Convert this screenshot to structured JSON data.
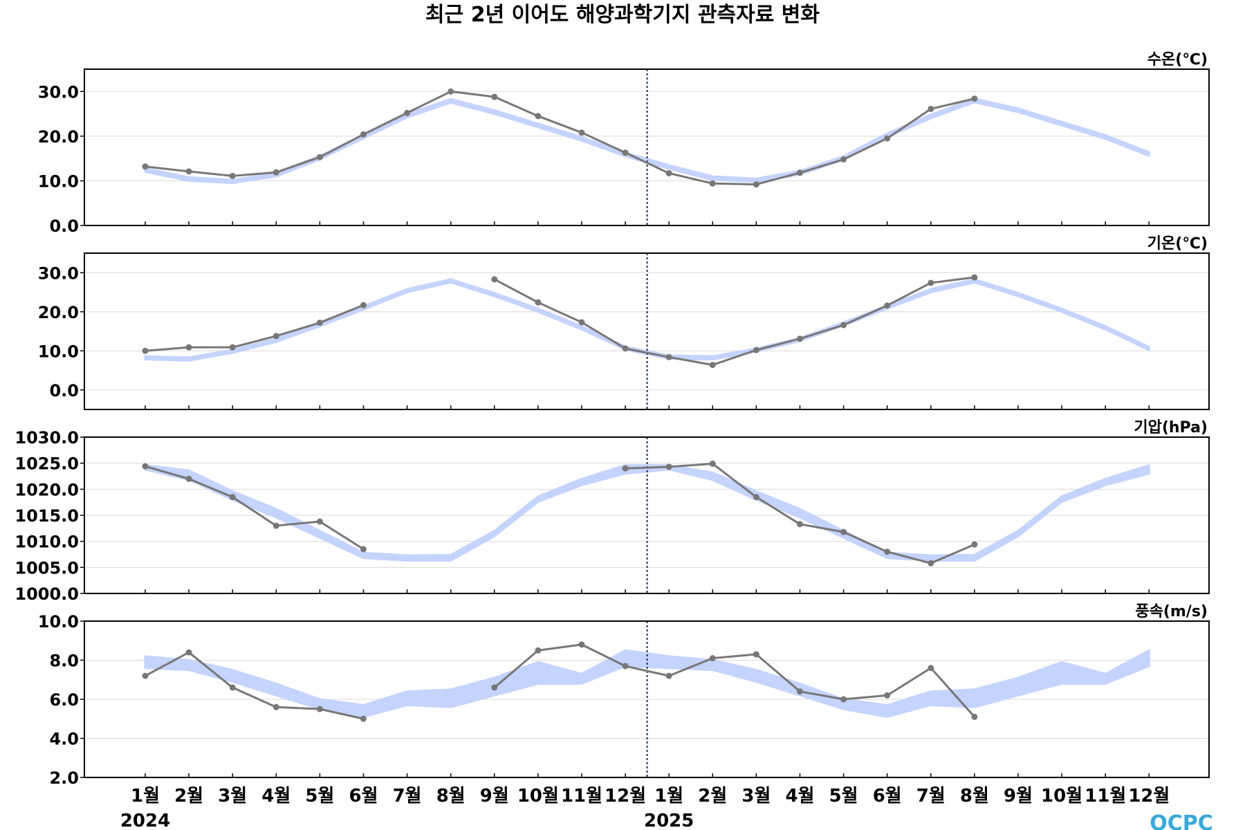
{
  "chart_data": {
    "type": "line",
    "title": "최근 2년 이어도 해양과학기지 관측자료 변화",
    "logo": "OCPC",
    "x_labels": [
      "1월",
      "2월",
      "3월",
      "4월",
      "5월",
      "6월",
      "7월",
      "8월",
      "9월",
      "10월",
      "11월",
      "12월",
      "1월",
      "2월",
      "3월",
      "4월",
      "5월",
      "6월",
      "7월",
      "8월",
      "9월",
      "10월",
      "11월",
      "12월"
    ],
    "year_labels": [
      "2024",
      "2025"
    ],
    "divider_after_index": 11,
    "colors": {
      "observed": "#777777",
      "normal_band": "#c5d3ff",
      "divider": "#1f2d5c",
      "grid": "#d9d9d9"
    },
    "panels": [
      {
        "unit_label": "수온(℃)",
        "ylim": [
          0,
          35
        ],
        "yticks": [
          0,
          10,
          20,
          30
        ],
        "yticklabels": [
          "0.0",
          "10.0",
          "20.0",
          "30.0"
        ],
        "normal_band": {
          "lower": [
            12.0,
            10.0,
            9.5,
            11.0,
            14.8,
            19.5,
            24.2,
            27.5,
            25.0,
            22.0,
            19.0,
            15.5,
            12.7,
            10.2,
            9.8,
            11.4,
            14.7,
            19.8,
            24.0,
            27.6,
            25.4,
            22.4,
            19.4,
            15.6
          ],
          "upper": [
            12.8,
            10.8,
            10.2,
            11.8,
            15.6,
            20.3,
            25.0,
            28.3,
            25.8,
            22.8,
            19.8,
            16.3,
            13.5,
            11.0,
            10.5,
            12.2,
            15.5,
            20.6,
            24.8,
            28.4,
            26.2,
            23.2,
            20.2,
            16.4
          ]
        },
        "series": [
          {
            "values": [
              13.2,
              12.1,
              11.1,
              11.9,
              15.3,
              20.4,
              25.2,
              30.0,
              28.8,
              24.5,
              20.8,
              16.3,
              11.7,
              9.4,
              9.2,
              11.8,
              14.8,
              19.5,
              26.1,
              28.4,
              null,
              null,
              null,
              null
            ]
          }
        ]
      },
      {
        "unit_label": "기온(℃)",
        "ylim": [
          -5,
          35
        ],
        "yticks": [
          0,
          10,
          20,
          30
        ],
        "yticklabels": [
          "0.0",
          "10.0",
          "20.0",
          "30.0"
        ],
        "normal_band": {
          "lower": [
            7.8,
            7.5,
            9.5,
            12.3,
            16.3,
            20.6,
            25.0,
            27.5,
            24.0,
            20.0,
            15.5,
            10.3,
            8.0,
            7.8,
            9.8,
            12.5,
            16.5,
            20.8,
            25.0,
            27.5,
            24.0,
            20.0,
            15.5,
            10.2
          ],
          "upper": [
            8.6,
            8.3,
            10.3,
            13.1,
            17.1,
            21.4,
            25.8,
            28.3,
            24.8,
            20.8,
            16.3,
            11.1,
            8.8,
            8.6,
            10.6,
            13.3,
            17.3,
            21.6,
            25.8,
            28.3,
            24.8,
            20.8,
            16.3,
            11.0
          ]
        },
        "series": [
          {
            "values": [
              10.0,
              10.9,
              10.9,
              13.8,
              17.2,
              21.7,
              null,
              null,
              28.3,
              22.4,
              17.3,
              10.6,
              8.4,
              6.4,
              10.2,
              13.1,
              16.6,
              21.6,
              27.4,
              28.8,
              null,
              null,
              null,
              null
            ]
          }
        ]
      },
      {
        "unit_label": "기압(hPa)",
        "ylim": [
          1000,
          1030
        ],
        "yticks": [
          1000,
          1005,
          1010,
          1015,
          1020,
          1025,
          1030
        ],
        "yticklabels": [
          "1000.0",
          "1005.0",
          "1010.0",
          "1015.0",
          "1020.0",
          "1025.0",
          "1030.0"
        ],
        "normal_band": {
          "lower": [
            1023.8,
            1021.8,
            1018.0,
            1014.6,
            1010.7,
            1006.8,
            1006.3,
            1006.3,
            1011.0,
            1017.6,
            1020.8,
            1023.0,
            1023.8,
            1021.8,
            1018.0,
            1014.6,
            1010.7,
            1006.8,
            1006.3,
            1006.3,
            1011.0,
            1017.6,
            1020.8,
            1023.0
          ],
          "upper": [
            1024.6,
            1023.6,
            1019.6,
            1016.2,
            1012.0,
            1007.8,
            1007.3,
            1007.4,
            1012.0,
            1018.6,
            1022.0,
            1024.6,
            1024.6,
            1023.2,
            1019.6,
            1016.2,
            1012.0,
            1007.8,
            1007.3,
            1007.4,
            1012.0,
            1018.6,
            1022.0,
            1024.6
          ]
        },
        "series": [
          {
            "values": [
              1024.4,
              1022.0,
              1018.5,
              1013.0,
              1013.8,
              1008.5,
              null,
              null,
              null,
              null,
              null,
              1024.0,
              1024.3,
              1024.9,
              1018.5,
              1013.3,
              1011.8,
              1008.0,
              1005.8,
              1009.4,
              null,
              null,
              null,
              null
            ]
          }
        ]
      },
      {
        "unit_label": "풍속(m/s)",
        "ylim": [
          2,
          10
        ],
        "yticks": [
          2,
          4,
          6,
          8,
          10
        ],
        "yticklabels": [
          "2.0",
          "4.0",
          "6.0",
          "8.0",
          "10.0"
        ],
        "normal_band": {
          "lower": [
            7.6,
            7.5,
            6.9,
            6.2,
            5.5,
            5.1,
            5.7,
            5.6,
            6.2,
            6.8,
            6.8,
            7.7,
            7.6,
            7.5,
            6.9,
            6.2,
            5.5,
            5.1,
            5.7,
            5.6,
            6.2,
            6.8,
            6.8,
            7.7
          ],
          "upper": [
            8.2,
            8.0,
            7.5,
            6.8,
            6.0,
            5.7,
            6.4,
            6.5,
            7.1,
            7.9,
            7.3,
            8.5,
            8.2,
            8.0,
            7.5,
            6.8,
            6.0,
            5.7,
            6.4,
            6.5,
            7.1,
            7.9,
            7.3,
            8.5
          ]
        },
        "series": [
          {
            "values": [
              7.2,
              8.4,
              6.6,
              5.6,
              5.5,
              5.0,
              null,
              null,
              6.6,
              8.5,
              8.8,
              7.7,
              7.2,
              8.1,
              8.3,
              6.4,
              6.0,
              6.2,
              7.6,
              5.1,
              null,
              null,
              null,
              null
            ]
          }
        ]
      }
    ]
  }
}
